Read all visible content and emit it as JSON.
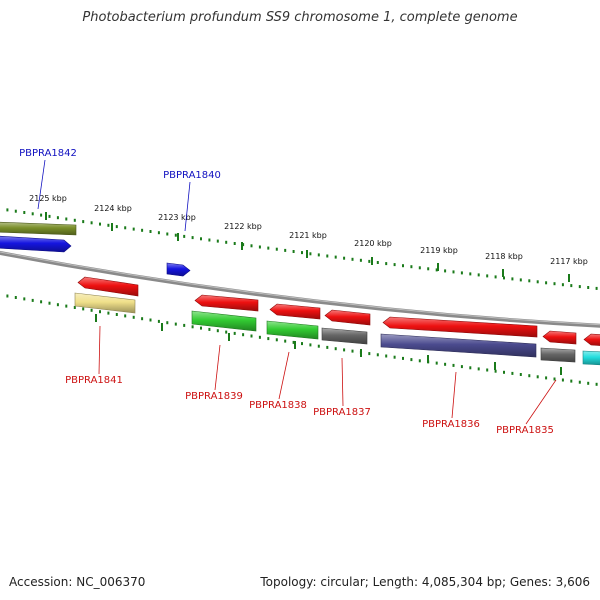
{
  "title": "Photobacterium profundum SS9 chromosome 1, complete genome",
  "footer": {
    "accession": "Accession: NC_006370",
    "stats": "Topology: circular; Length: 4,085,304 bp; Genes: 3,606"
  },
  "colors": {
    "backbone": "#8a8a8a",
    "tick": "#1a7a1a",
    "label_forward": "#1010c0",
    "label_reverse": "#cc1010",
    "olive": "#7a8f2a",
    "blue": "#1515e0",
    "red": "#ee1111",
    "khaki": "#f0e08a",
    "green": "#33cc33",
    "gray": "#666666",
    "navy": "#4b4b8f",
    "cyan": "#22dddd"
  },
  "scale": {
    "ticks_kbp": [
      "2125 kbp",
      "2124 kbp",
      "2123 kbp",
      "2122 kbp",
      "2121 kbp",
      "2120 kbp",
      "2119 kbp",
      "2118 kbp",
      "2117 kbp"
    ]
  },
  "features": [
    {
      "id": "olive-gene",
      "color": "olive",
      "label": ""
    },
    {
      "id": "PBPRA1842",
      "color": "blue",
      "label": "PBPRA1842"
    },
    {
      "id": "PBPRA1840",
      "color": "blue",
      "label": "PBPRA1840"
    },
    {
      "id": "PBPRA1841-red",
      "color": "red",
      "label": ""
    },
    {
      "id": "PBPRA1841",
      "color": "khaki",
      "label": "PBPRA1841"
    },
    {
      "id": "PBPRA1839-red",
      "color": "red",
      "label": ""
    },
    {
      "id": "PBPRA1839",
      "color": "green",
      "label": "PBPRA1839"
    },
    {
      "id": "PBPRA1838-red",
      "color": "red",
      "label": ""
    },
    {
      "id": "PBPRA1838",
      "color": "green",
      "label": "PBPRA1838"
    },
    {
      "id": "PBPRA1837-red",
      "color": "red",
      "label": ""
    },
    {
      "id": "PBPRA1837",
      "color": "gray",
      "label": "PBPRA1837"
    },
    {
      "id": "PBPRA1836-red",
      "color": "red",
      "label": ""
    },
    {
      "id": "PBPRA1836",
      "color": "navy",
      "label": "PBPRA1836"
    },
    {
      "id": "PBPRA1835-red",
      "color": "red",
      "label": ""
    },
    {
      "id": "PBPRA1835",
      "color": "gray",
      "label": "PBPRA1835"
    },
    {
      "id": "edge-red",
      "color": "red",
      "label": ""
    },
    {
      "id": "edge-cyan",
      "color": "cyan",
      "label": ""
    }
  ]
}
